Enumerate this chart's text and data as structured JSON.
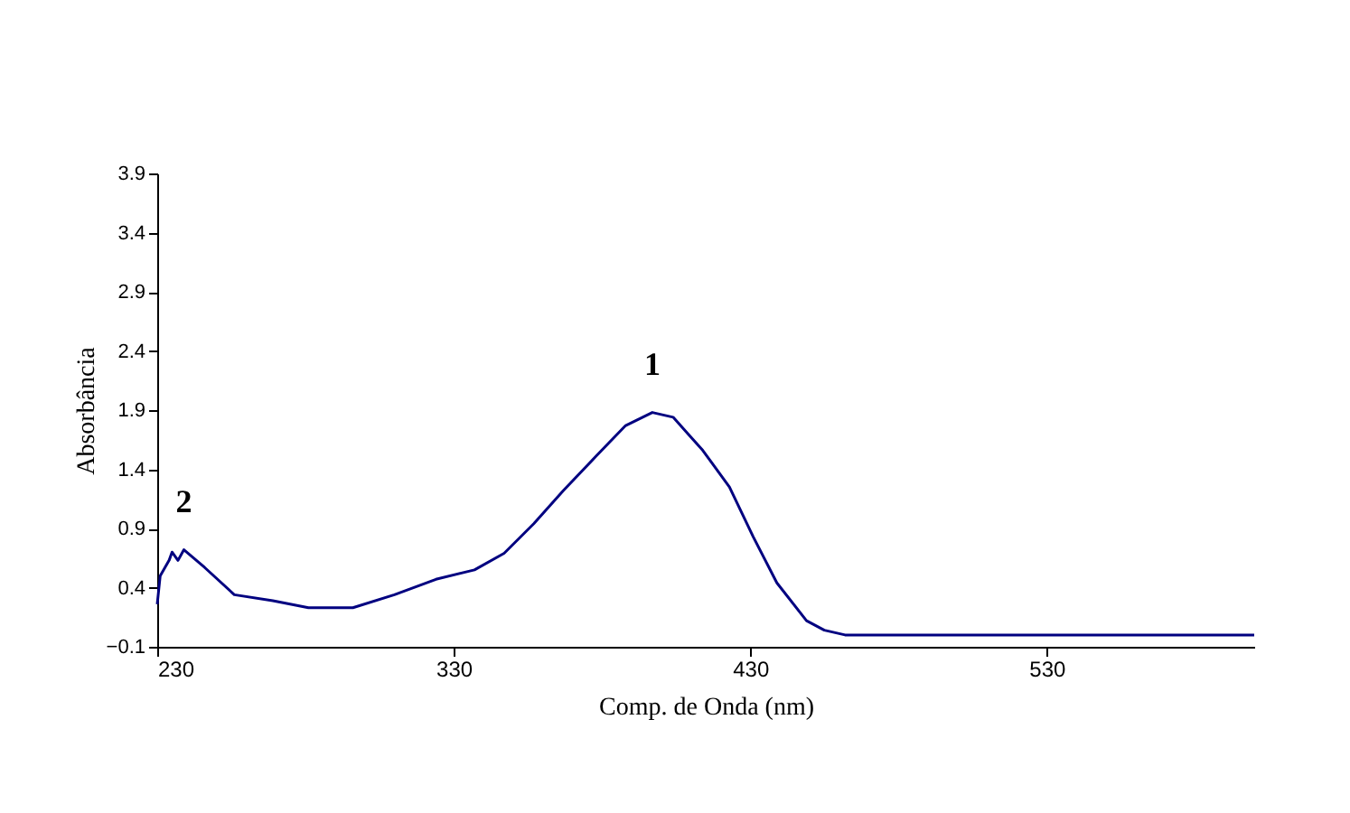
{
  "chart_data": {
    "type": "line",
    "xlabel": "Comp. de Onda (nm)",
    "ylabel": "Absorbância",
    "xlim": [
      230,
      600
    ],
    "xticks": [
      230,
      330,
      430,
      530
    ],
    "ylim": [
      -0.1,
      3.9
    ],
    "yticks": [
      -0.1,
      0.4,
      0.9,
      1.4,
      1.9,
      2.4,
      2.9,
      3.4,
      3.9
    ],
    "grid": false,
    "legend": false,
    "series": [
      {
        "color": "#000080",
        "x": [
          230,
          231,
          234,
          235,
          237,
          239,
          246,
          256,
          269,
          281,
          296,
          310,
          324,
          337,
          347,
          357,
          367,
          378,
          388,
          397,
          404,
          414,
          423,
          431,
          439,
          449,
          455,
          462,
          600
        ],
        "values": [
          0.26,
          0.5,
          0.63,
          0.7,
          0.63,
          0.72,
          0.57,
          0.34,
          0.29,
          0.23,
          0.23,
          0.34,
          0.47,
          0.55,
          0.69,
          0.94,
          1.22,
          1.51,
          1.77,
          1.88,
          1.84,
          1.56,
          1.25,
          0.83,
          0.44,
          0.12,
          0.04,
          0,
          0
        ]
      }
    ],
    "annotations": [
      {
        "text": "1",
        "x": 397,
        "y": 1.88
      },
      {
        "text": "2",
        "x": 239,
        "y": 0.72
      }
    ]
  }
}
